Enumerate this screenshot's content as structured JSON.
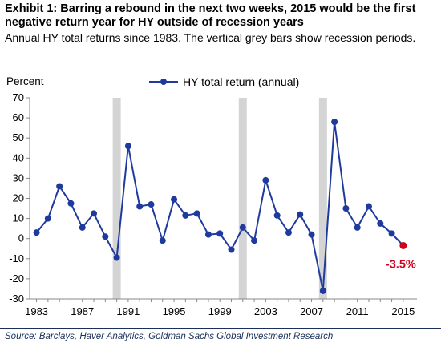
{
  "header": {
    "title": "Exhibit 1: Barring a rebound in the next two weeks, 2015 would be the first negative return year for HY outside of recession years",
    "subtitle": "Annual HY total returns since 1983. The vertical grey bars show recession periods."
  },
  "footer": {
    "source": "Source: Barclays, Haver Analytics, Goldman Sachs Global Investment Research"
  },
  "colors": {
    "series": "#1f3a9e",
    "highlight": "#d0021b",
    "recession_bar": "#d4d4d4",
    "axis": "#888888"
  },
  "chart_data": {
    "type": "line",
    "title": "",
    "ylabel": "Percent",
    "xlabel": "",
    "ylim": [
      -30,
      70
    ],
    "xlim": [
      1983,
      2015
    ],
    "yticks": [
      -30,
      -20,
      -10,
      0,
      10,
      20,
      30,
      40,
      50,
      60,
      70
    ],
    "xticks": [
      1983,
      1987,
      1991,
      1995,
      1999,
      2003,
      2007,
      2011,
      2015
    ],
    "grid": false,
    "legend_position": "top-center",
    "recession_periods": [
      1990,
      2001,
      2008
    ],
    "series": [
      {
        "name": "HY total return (annual)",
        "x": [
          1983,
          1984,
          1985,
          1986,
          1987,
          1988,
          1989,
          1990,
          1991,
          1992,
          1993,
          1994,
          1995,
          1996,
          1997,
          1998,
          1999,
          2000,
          2001,
          2002,
          2003,
          2004,
          2005,
          2006,
          2007,
          2008,
          2009,
          2010,
          2011,
          2012,
          2013,
          2014
        ],
        "values": [
          3,
          10,
          26,
          17.5,
          5.5,
          12.5,
          1,
          -9.5,
          46,
          16,
          17,
          -1,
          19.5,
          11.5,
          12.5,
          2,
          2.5,
          -5.5,
          5.5,
          -1,
          29,
          11.5,
          3,
          12,
          2,
          -26,
          58,
          15,
          5.5,
          16,
          7.5,
          2.5
        ]
      }
    ],
    "highlight_point": {
      "x": 2015,
      "y": -3.5,
      "label": "-3.5%"
    }
  }
}
